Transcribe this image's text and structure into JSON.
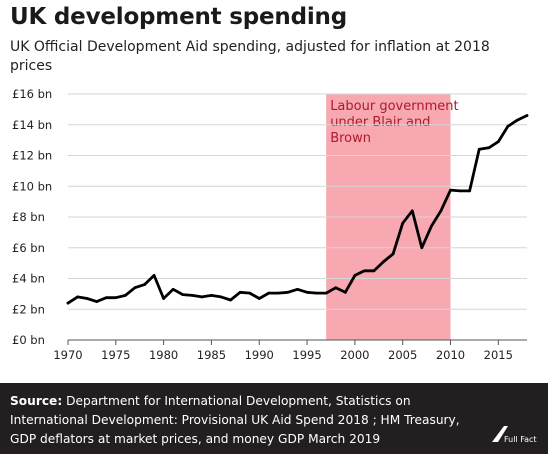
{
  "header": {
    "title": "UK development spending",
    "subtitle": "UK Official Development Aid spending, adjusted for inflation at 2018 prices"
  },
  "chart_data": {
    "type": "line",
    "title": "",
    "xlabel": "",
    "ylabel": "",
    "xlim": [
      1970,
      2018
    ],
    "ylim": [
      0,
      16
    ],
    "x_ticks": [
      1970,
      1975,
      1980,
      1985,
      1990,
      1995,
      2000,
      2005,
      2010,
      2015
    ],
    "y_ticks": [
      0,
      2,
      4,
      6,
      8,
      10,
      12,
      14,
      16
    ],
    "y_tick_labels": [
      "£0 bn",
      "£2 bn",
      "£4 bn",
      "£6 bn",
      "£8 bn",
      "£10 bn",
      "£12 bn",
      "£14 bn",
      "£16 bn"
    ],
    "grid": "horizontal",
    "series": [
      {
        "color": "#000000",
        "x": [
          1970,
          1971,
          1972,
          1973,
          1974,
          1975,
          1976,
          1977,
          1978,
          1979,
          1980,
          1981,
          1982,
          1983,
          1984,
          1985,
          1986,
          1987,
          1988,
          1989,
          1990,
          1991,
          1992,
          1993,
          1994,
          1995,
          1996,
          1997,
          1998,
          1999,
          2000,
          2001,
          2002,
          2003,
          2004,
          2005,
          2006,
          2007,
          2008,
          2009,
          2010,
          2011,
          2012,
          2013,
          2014,
          2015,
          2016,
          2017,
          2018
        ],
        "values": [
          2.4,
          2.8,
          2.7,
          2.5,
          2.75,
          2.75,
          2.9,
          3.4,
          3.6,
          4.2,
          2.7,
          3.3,
          2.95,
          2.9,
          2.8,
          2.9,
          2.8,
          2.6,
          3.1,
          3.05,
          2.7,
          3.05,
          3.05,
          3.1,
          3.3,
          3.1,
          3.05,
          3.05,
          3.4,
          3.1,
          4.2,
          4.5,
          4.5,
          5.1,
          5.6,
          7.6,
          8.4,
          6.0,
          7.4,
          8.4,
          9.75,
          9.7,
          9.7,
          12.4,
          12.5,
          12.9,
          13.9,
          14.3,
          14.6
        ]
      }
    ],
    "highlight": {
      "x_start": 1997,
      "x_end": 2010,
      "label_lines": [
        "Labour government",
        "under Blair and",
        "Brown"
      ],
      "fill_color": "#f7a8b0",
      "text_color": "#b0192c"
    }
  },
  "footer": {
    "source_label": "Source:",
    "source_text": " Department for International Development, Statistics on International Development: Provisional UK Aid Spend 2018 ; HM Treasury, GDP deflators at market prices, and money GDP March 2019",
    "logo_text": "Full Fact"
  }
}
